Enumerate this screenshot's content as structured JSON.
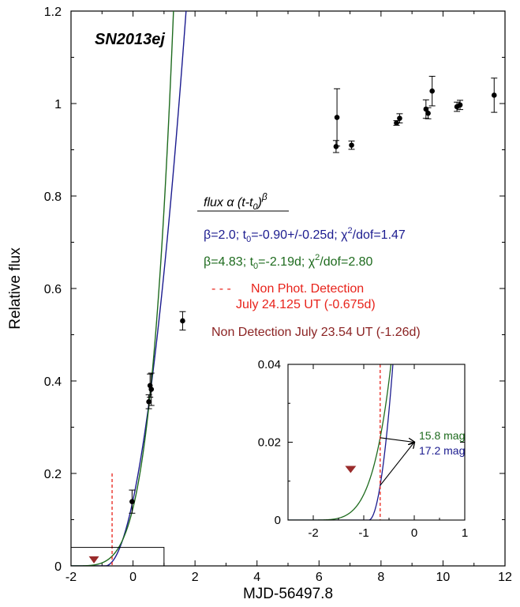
{
  "chart_data": [
    {
      "type": "scatter",
      "title": "SN2013ej",
      "xlabel": "MJD-56497.8",
      "ylabel": "Relative flux",
      "xlim": [
        -2,
        12
      ],
      "ylim": [
        0,
        1.2
      ],
      "x_ticks": [
        "-2",
        "0",
        "2",
        "4",
        "6",
        "8",
        "10",
        "12"
      ],
      "y_ticks": [
        "0",
        "0.2",
        "0.4",
        "0.6",
        "0.8",
        "1",
        "1.2"
      ],
      "grid": false,
      "legend_position": "center-right",
      "points": [
        {
          "x": -0.03,
          "y": 0.139,
          "err": 0.025
        },
        {
          "x": 0.51,
          "y": 0.355,
          "err": 0.015
        },
        {
          "x": 0.55,
          "y": 0.39,
          "err": 0.025
        },
        {
          "x": 0.59,
          "y": 0.382,
          "err": 0.035
        },
        {
          "x": 1.6,
          "y": 0.53,
          "err": 0.02
        },
        {
          "x": 6.55,
          "y": 0.907,
          "err": 0.013
        },
        {
          "x": 6.58,
          "y": 0.97,
          "err": 0.062
        },
        {
          "x": 7.05,
          "y": 0.91,
          "err": 0.009
        },
        {
          "x": 8.5,
          "y": 0.958,
          "err": 0.005
        },
        {
          "x": 8.6,
          "y": 0.968,
          "err": 0.01
        },
        {
          "x": 9.45,
          "y": 0.988,
          "err": 0.02
        },
        {
          "x": 9.52,
          "y": 0.979,
          "err": 0.012
        },
        {
          "x": 9.65,
          "y": 1.027,
          "err": 0.032
        },
        {
          "x": 10.45,
          "y": 0.993,
          "err": 0.01
        },
        {
          "x": 10.55,
          "y": 0.997,
          "err": 0.01
        },
        {
          "x": 11.65,
          "y": 1.018,
          "err": 0.037
        }
      ],
      "series": [
        {
          "label": "β=2.0; t0=-0.90+/-0.25d; χ2/dof=1.47",
          "color": "#1b1b8f",
          "beta": 2.0,
          "t0": -0.9
        },
        {
          "label": "β=4.83; t0=-2.19d; χ2/dof=2.80",
          "color": "#1e6b1e",
          "beta": 4.83,
          "t0": -2.19
        }
      ],
      "non_phot_detection_x": -0.675,
      "non_detection": {
        "x": -1.26,
        "y": 0.013
      },
      "inset_region": {
        "xlim": [
          -2.5,
          1
        ],
        "ylim": [
          0,
          0.04
        ]
      }
    },
    {
      "type": "line",
      "xlim": [
        -2.5,
        1
      ],
      "ylim": [
        0,
        0.04
      ],
      "x_ticks": [
        "-2",
        "-1",
        "0",
        "1"
      ],
      "y_ticks": [
        "0",
        "0.02",
        "0.04"
      ],
      "annotation_arrow_target": {
        "x": 0,
        "y": 0.02
      }
    }
  ],
  "legend": {
    "formula_main": "flux α (t-t",
    "formula_sub": "0",
    "formula_tail": ")",
    "formula_sup": "β",
    "blue_line": {
      "a": "β=2.0; t",
      "a_sub": "0",
      "b": "=-0.90+/-0.25d; χ",
      "b_sup": "2",
      "c": "/dof=1.47"
    },
    "green_line": {
      "a": "β=4.83; t",
      "a_sub": "0",
      "b": "=-2.19d; χ",
      "b_sup": "2",
      "c": "/dof=2.80"
    },
    "dash_symbol": "- - -",
    "non_phot_line1": "Non Phot. Detection",
    "non_phot_line2": "July 24.125 UT (-0.675d)",
    "non_detection": "Non Detection July 23.54 UT (-1.26d)"
  },
  "inset_labels": {
    "mag_green": "15.8 mag",
    "mag_blue": "17.2 mag"
  },
  "colors": {
    "blue": "#1b1b8f",
    "green": "#1e6b1e",
    "red": "#e8231b",
    "brown": "#9a2b2b",
    "darkred_text": "#8b2323",
    "axis": "#000000"
  }
}
